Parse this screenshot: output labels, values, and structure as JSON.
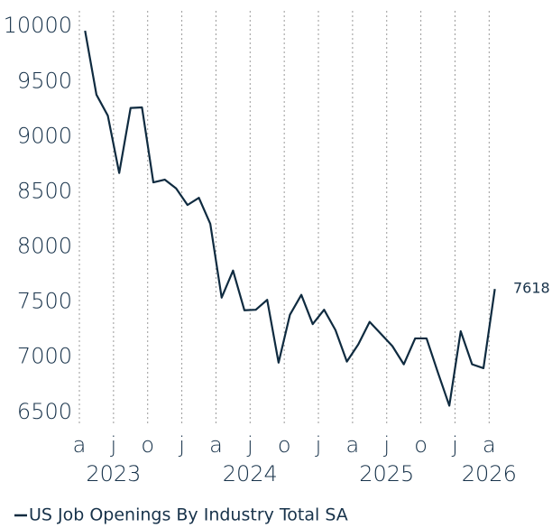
{
  "chart_data": {
    "type": "line",
    "categories": [
      "a",
      null,
      null,
      "j",
      null,
      null,
      "o",
      null,
      null,
      "j",
      null,
      null,
      "a",
      null,
      null,
      "j",
      null,
      null,
      "o",
      null,
      null,
      "j",
      null,
      null,
      "a",
      null,
      null,
      "j",
      null,
      null,
      "o",
      null,
      null,
      "j",
      null,
      null,
      "a"
    ],
    "year_labels": [
      {
        "label": "2023",
        "category": 3
      },
      {
        "label": "2024",
        "category": 15
      },
      {
        "label": "2025",
        "category": 27
      },
      {
        "label": "2026",
        "category": 36
      }
    ],
    "series": [
      {
        "name": "US Job Openings By Industry Total SA",
        "color": "#0f2b40",
        "values": [
          9960,
          9380,
          9190,
          8670,
          9260,
          9265,
          8585,
          8610,
          8530,
          8380,
          8445,
          8210,
          7540,
          7785,
          7425,
          7430,
          7520,
          6950,
          7385,
          7565,
          7300,
          7430,
          7245,
          6960,
          7115,
          7320,
          7210,
          7100,
          6935,
          7170,
          7170,
          6860,
          6560,
          7235,
          6935,
          6900,
          7618
        ]
      }
    ],
    "ylim": [
      6400,
      10100
    ],
    "yticks": [
      6500,
      7000,
      7500,
      8000,
      8500,
      9000,
      9500,
      10000
    ],
    "grid": "x",
    "end_label": true,
    "legend": "bottom-left"
  }
}
